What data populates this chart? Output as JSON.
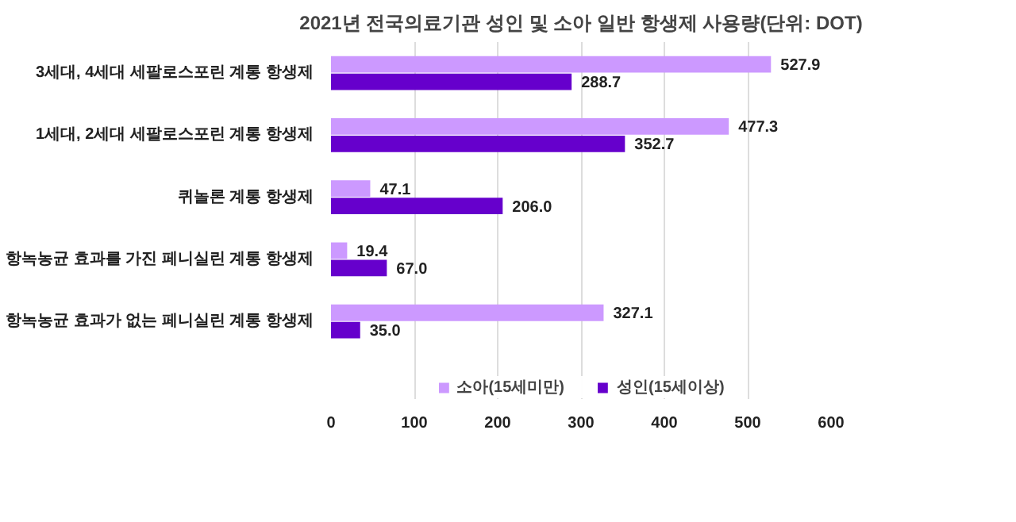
{
  "chart_data": {
    "type": "bar",
    "orientation": "horizontal",
    "title": "2021년 전국의료기관 성인 및 소아 일반 항생제 사용량(단위: DOT)",
    "categories": [
      "3세대, 4세대 세팔로스포린 계통 항생제",
      "1세대, 2세대 세팔로스포린 계통 항생제",
      "퀴놀론 계통 항생제",
      "항녹농균 효과를 가진 페니실린 계통 항생제",
      "항녹농균 효과가 없는 페니실린 계통 항생제"
    ],
    "series": [
      {
        "name": "소아(15세미만)",
        "color": "#cc99ff",
        "values": [
          527.9,
          477.3,
          47.1,
          19.4,
          327.1
        ],
        "value_labels": [
          "527.9",
          "477.3",
          "47.1",
          "19.4",
          "327.1"
        ]
      },
      {
        "name": "성인(15세이상)",
        "color": "#6600cc",
        "values": [
          288.7,
          352.7,
          206.0,
          67.0,
          35.0
        ],
        "value_labels": [
          "288.7",
          "352.7",
          "206.0",
          "67.0",
          "35.0"
        ]
      }
    ],
    "xlim": [
      0,
      600
    ],
    "xticks": [
      0,
      100,
      200,
      300,
      400,
      500,
      600
    ],
    "grid": "x",
    "legend": "bottom"
  }
}
